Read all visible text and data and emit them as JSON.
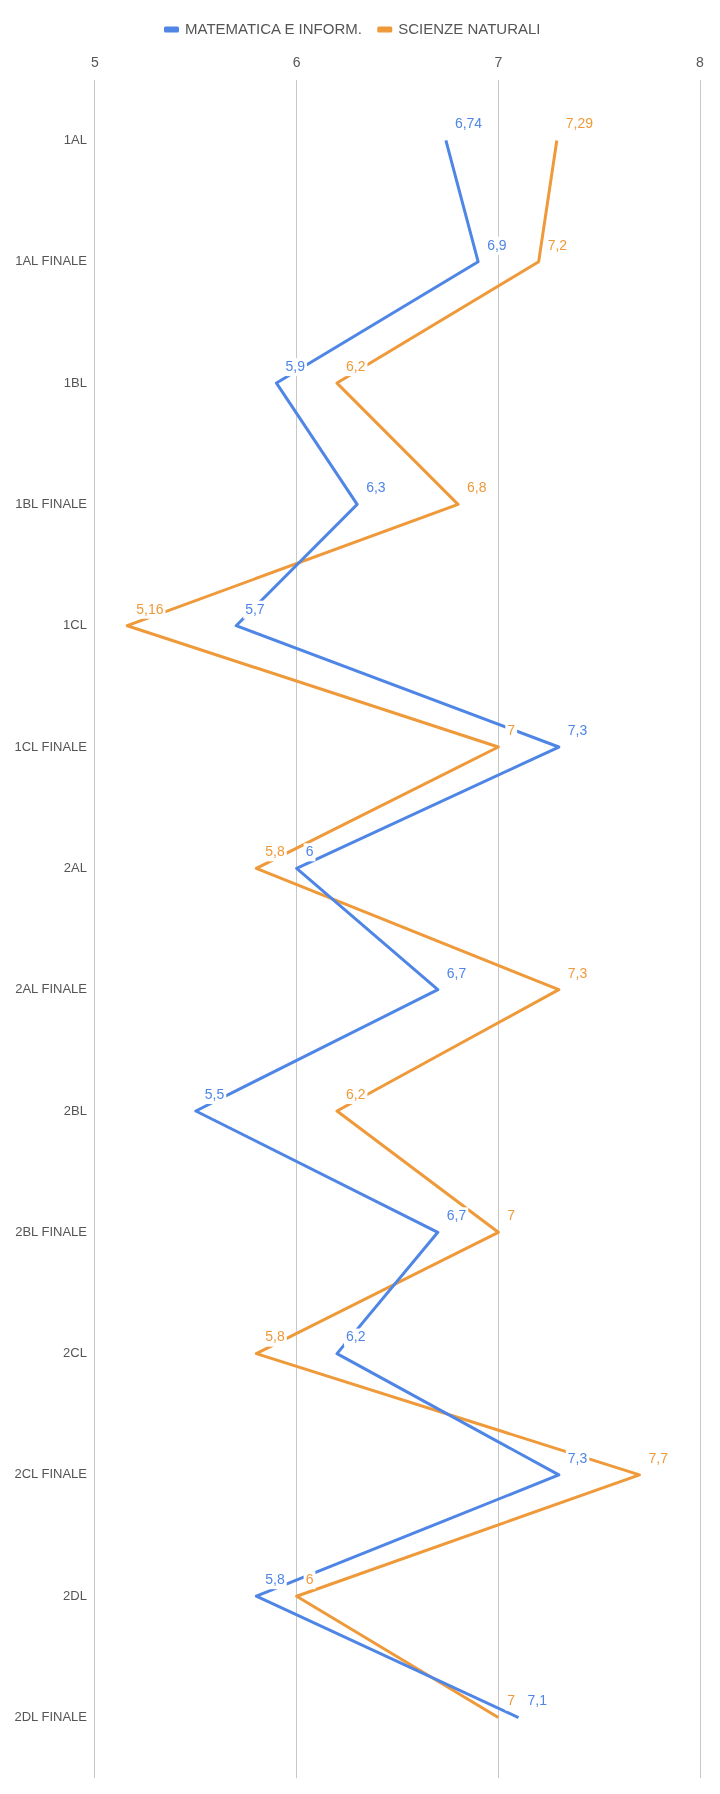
{
  "chart_data": {
    "type": "line",
    "categories": [
      "1AL",
      "1AL FINALE",
      "1BL",
      "1BL FINALE",
      "1CL",
      "1CL FINALE",
      "2AL",
      "2AL FINALE",
      "2BL",
      "2BL FINALE",
      "2CL",
      "2CL FINALE",
      "2DL",
      "2DL FINALE"
    ],
    "series": [
      {
        "name": "MATEMATICA E INFORM.",
        "color": "#4f86e6",
        "values": [
          6.74,
          6.9,
          5.9,
          6.3,
          5.7,
          7.3,
          6,
          6.7,
          5.5,
          6.7,
          6.2,
          7.3,
          5.8,
          7.1
        ],
        "value_labels": [
          "6,74",
          "6,9",
          "5,9",
          "6,3",
          "5,7",
          "7,3",
          "6",
          "6,7",
          "5,5",
          "6,7",
          "6,2",
          "7,3",
          "5,8",
          "7,1"
        ]
      },
      {
        "name": "SCIENZE NATURALI",
        "color": "#ef9a3a",
        "values": [
          7.29,
          7.2,
          6.2,
          6.8,
          5.16,
          7,
          5.8,
          7.3,
          6.2,
          7,
          5.8,
          7.7,
          6,
          7
        ],
        "value_labels": [
          "7,29",
          "7,2",
          "6,2",
          "6,8",
          "5,16",
          "7",
          "5,8",
          "7,3",
          "6,2",
          "7",
          "5,8",
          "7,7",
          "6",
          "7"
        ]
      }
    ],
    "orientation": "horizontal",
    "xlim": [
      5,
      8
    ],
    "xticks": [
      5,
      6,
      7,
      8
    ],
    "grid": "x",
    "legend": "top",
    "marker": "none",
    "line_style": "solid"
  }
}
